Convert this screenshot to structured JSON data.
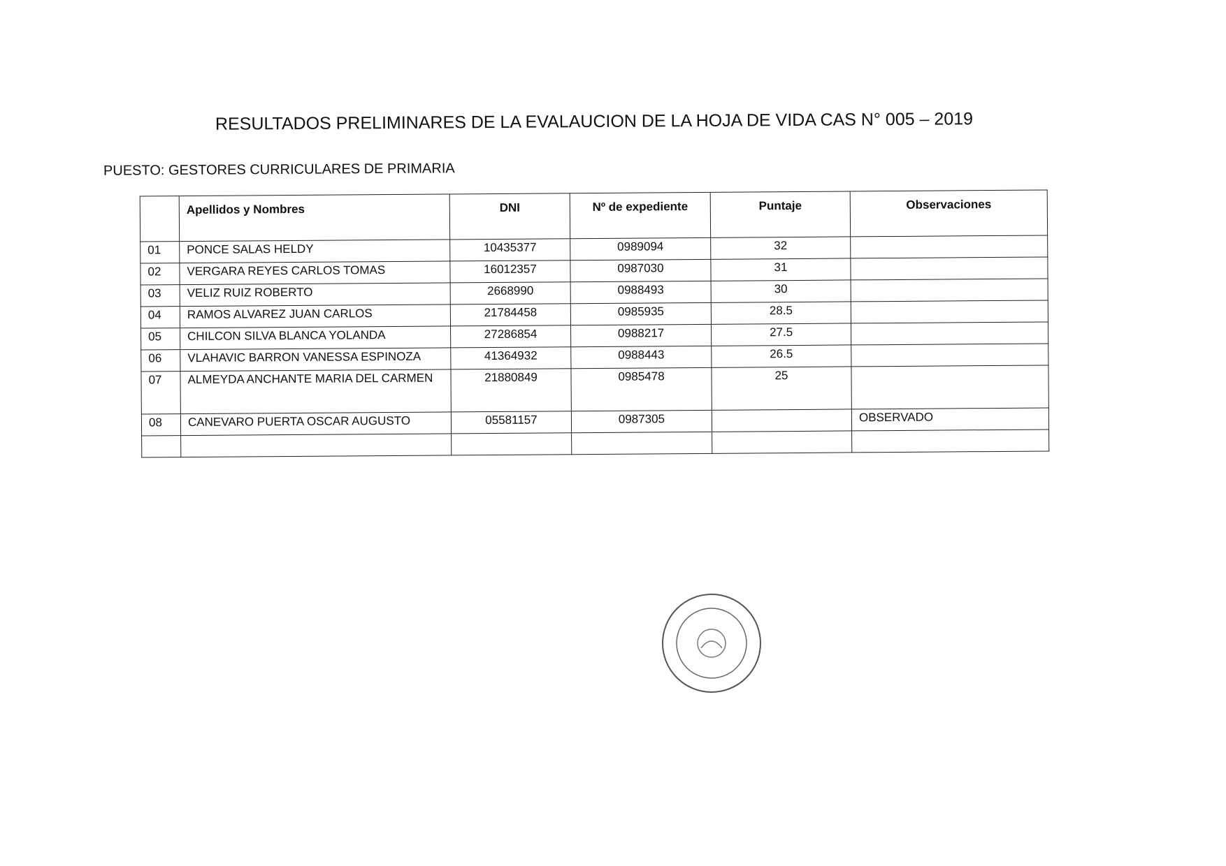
{
  "header": {
    "title": "RESULTADOS PRELIMINARES DE LA EVALAUCION DE LA HOJA DE VIDA CAS N° 005 – 2019",
    "subtitle": "PUESTO: GESTORES CURRICULARES DE PRIMARIA"
  },
  "table": {
    "columns": [
      "Apellidos  y Nombres",
      "DNI",
      "Nº  de expediente",
      "Puntaje",
      "Observaciones"
    ],
    "rows": [
      {
        "no": "01",
        "name": "PONCE SALAS HELDY",
        "dni": "10435377",
        "expediente": "0989094",
        "puntaje": "32"
      },
      {
        "no": "02",
        "name": "VERGARA REYES CARLOS TOMAS",
        "dni": "16012357",
        "expediente": "0987030",
        "puntaje": "31"
      },
      {
        "no": "03",
        "name": "VELIZ RUIZ ROBERTO",
        "dni": "2668990",
        "expediente": "0988493",
        "puntaje": "30"
      },
      {
        "no": "04",
        "name": "RAMOS ALVAREZ JUAN CARLOS",
        "dni": "21784458",
        "expediente": "0985935",
        "puntaje": "28.5"
      },
      {
        "no": "05",
        "name": "CHILCON SILVA BLANCA YOLANDA",
        "dni": "27286854",
        "expediente": "0988217",
        "puntaje": "27.5"
      },
      {
        "no": "06",
        "name": "VLAHAVIC BARRON VANESSA ESPINOZA",
        "dni": "41364932",
        "expediente": "0988443",
        "puntaje": "26.5"
      },
      {
        "no": "07",
        "name": "ALMEYDA ANCHANTE MARIA DEL CARMEN",
        "dni": "21880849",
        "expediente": "0985478",
        "puntaje": "25"
      },
      {
        "no": "08",
        "name": "CANEVARO PUERTA OSCAR AUGUSTO",
        "dni": "05581157",
        "expediente": "0987305",
        "observaciones": "OBSERVADO"
      }
    ]
  }
}
